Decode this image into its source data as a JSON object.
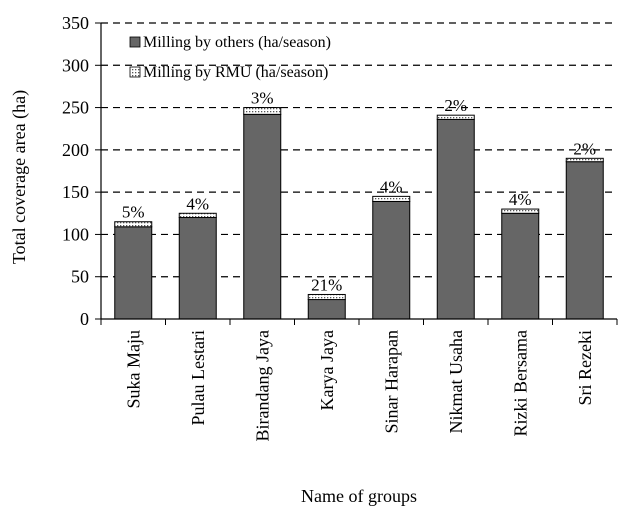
{
  "chart_data": {
    "type": "bar",
    "stacked": true,
    "xlabel": "Name of groups",
    "ylabel": "Total coverage area (ha)",
    "ylim": [
      0,
      350
    ],
    "yticks": [
      0,
      50,
      100,
      150,
      200,
      250,
      300,
      350
    ],
    "grid": "horizontal dashed",
    "legend_position": "top-left",
    "categories": [
      "Suka Maju",
      "Pulau Lestari",
      "Birandang Jaya",
      "Karya Jaya",
      "Sinar Harapan",
      "Nikmat Usaha",
      "Rizki Bersama",
      "Sri Rezeki"
    ],
    "series": [
      {
        "name": "Milling by others (ha/season)",
        "values": [
          109,
          120,
          242,
          23,
          139,
          236,
          125,
          186
        ],
        "color": "#666666"
      },
      {
        "name": "Milling by RMU (ha/season)",
        "values": [
          6,
          5,
          8,
          6,
          6,
          5,
          5,
          4
        ],
        "color": "#ffffff",
        "pattern": "dotted"
      }
    ],
    "data_labels": [
      "5%",
      "4%",
      "3%",
      "21%",
      "4%",
      "2%",
      "4%",
      "2%"
    ]
  }
}
